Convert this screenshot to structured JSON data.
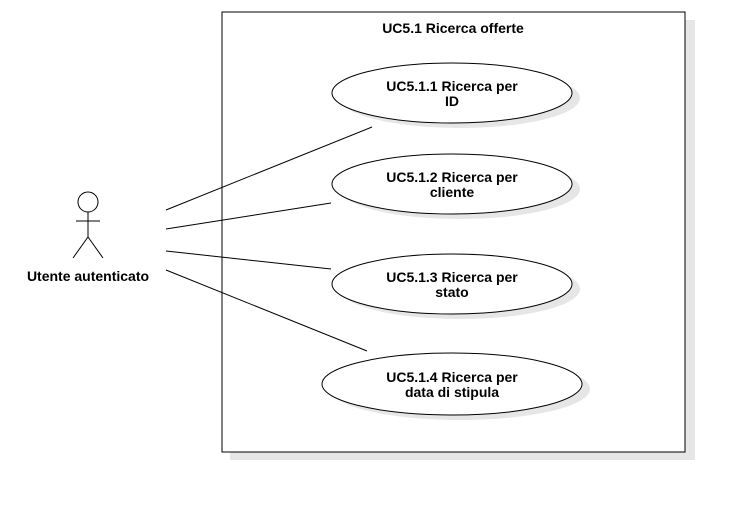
{
  "colors": {
    "stroke": "#000000",
    "shadow": "#e6e6e6",
    "fill": "#ffffff"
  },
  "system": {
    "title": "UC5.1 Ricerca offerte"
  },
  "actor": {
    "label": "Utente autenticato",
    "icon": "stick-figure-actor-icon"
  },
  "use_cases": [
    {
      "line1": "UC5.1.1 Ricerca per",
      "line2": "ID"
    },
    {
      "line1": "UC5.1.2 Ricerca per",
      "line2": "cliente"
    },
    {
      "line1": "UC5.1.3 Ricerca per",
      "line2": "stato"
    },
    {
      "line1": "UC5.1.4 Ricerca per",
      "line2": "data di stipula"
    }
  ]
}
